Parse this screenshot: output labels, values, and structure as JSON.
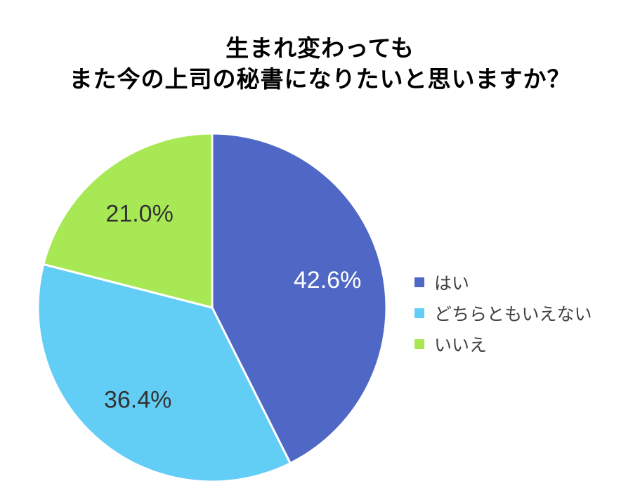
{
  "chart_data": {
    "type": "pie",
    "title": [
      "生まれ変わっても",
      "また今の上司の秘書になりたいと思いますか？"
    ],
    "categories": [
      "はい",
      "どちらともいえない",
      "いいえ"
    ],
    "values": [
      42.6,
      36.4,
      21.0
    ],
    "labels": [
      "42.6%",
      "36.4%",
      "21.0%"
    ],
    "colors": [
      "#4F67C5",
      "#63CEF5",
      "#A8E854"
    ],
    "label_colors": [
      "#ffffff",
      "#333333",
      "#333333"
    ],
    "start_angle": "12 o'clock",
    "direction": "clockwise",
    "legend_position": "right"
  }
}
